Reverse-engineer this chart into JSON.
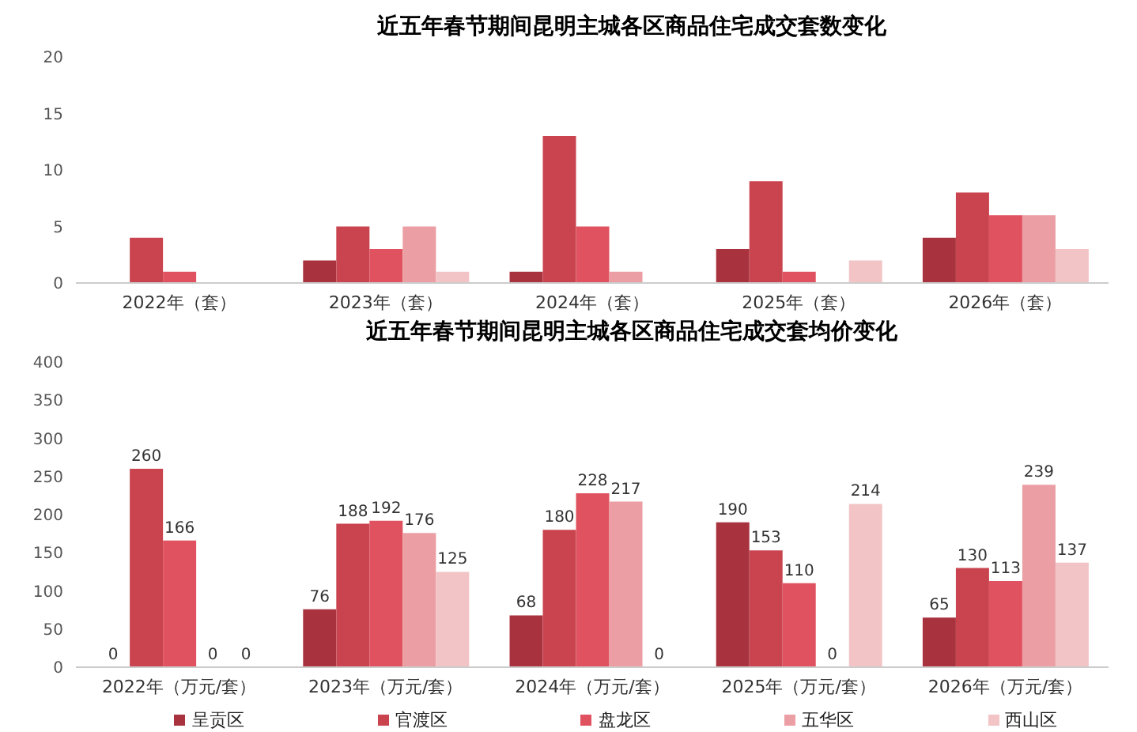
{
  "chart_data": [
    {
      "type": "bar",
      "title": "近五年春节期间昆明主城各区商品住宅成交套数变化",
      "categories": [
        "2022年（套）",
        "2023年（套）",
        "2024年（套）",
        "2025年（套）",
        "2026年（套）"
      ],
      "series": [
        {
          "color": "#a8333f",
          "values": [
            0,
            2,
            1,
            3,
            4
          ]
        },
        {
          "color": "#c9444f",
          "values": [
            4,
            5,
            13,
            9,
            8
          ]
        },
        {
          "color": "#e05260",
          "values": [
            1,
            3,
            5,
            1,
            6
          ]
        },
        {
          "color": "#eb9ea3",
          "values": [
            0,
            5,
            1,
            0,
            6
          ]
        },
        {
          "color": "#f2c4c6",
          "values": [
            0,
            1,
            0,
            2,
            3
          ]
        }
      ],
      "ylim": [
        0,
        20
      ],
      "yticks": [
        0,
        5,
        10,
        15,
        20
      ],
      "grid": false,
      "legend": false
    },
    {
      "type": "bar",
      "title": "近五年春节期间昆明主城各区商品住宅成交套均价变化",
      "categories": [
        "2022年（万元/套）",
        "2023年（万元/套）",
        "2024年（万元/套）",
        "2025年（万元/套）",
        "2026年（万元/套）"
      ],
      "series": [
        {
          "name": "呈贡区",
          "color": "#a8333f",
          "values": [
            0,
            76,
            68,
            190,
            65
          ]
        },
        {
          "name": "官渡区",
          "color": "#c9444f",
          "values": [
            260,
            188,
            180,
            153,
            130
          ]
        },
        {
          "name": "盘龙区",
          "color": "#e05260",
          "values": [
            166,
            192,
            228,
            110,
            113
          ]
        },
        {
          "name": "五华区",
          "color": "#eb9ea3",
          "values": [
            0,
            176,
            217,
            0,
            239
          ]
        },
        {
          "name": "西山区",
          "color": "#f2c4c6",
          "values": [
            0,
            125,
            0,
            214,
            137
          ]
        }
      ],
      "ylim": [
        0,
        400
      ],
      "yticks": [
        0,
        50,
        100,
        150,
        200,
        250,
        300,
        350,
        400
      ],
      "grid": false,
      "data_labels": true,
      "legend": "bottom"
    }
  ]
}
